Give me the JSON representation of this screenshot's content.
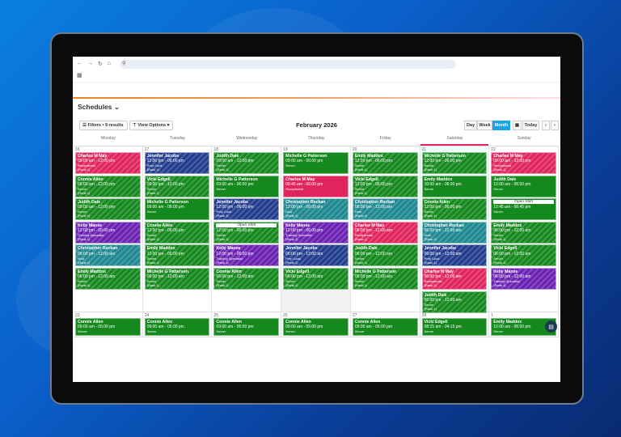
{
  "browser": {
    "icons": [
      "back-icon",
      "forward-icon",
      "reload-icon",
      "home-icon",
      "site-info-icon",
      "apps-icon"
    ]
  },
  "header": {
    "title": "Schedules",
    "title_chevron": "⌄"
  },
  "toolbar": {
    "filters_label": "Filters • 9 results",
    "view_options_label": "View Options",
    "month_title": "February 2026",
    "views": [
      "Day",
      "Week",
      "Month"
    ],
    "active_view": "Month",
    "today_label": "Today",
    "prev": "‹",
    "next": "›"
  },
  "weekdays": [
    "Monday",
    "Tuesday",
    "Wednesday",
    "Thursday",
    "Friday",
    "Saturday",
    "Sunday"
  ],
  "colors": {
    "Receptionist": "#e0245e",
    "Server": "#15891d",
    "Prep Cook": "#233d8e",
    "Training Specialist": "#6b22b3",
    "Host": "#1f8890",
    "accent": "#1aa3e8",
    "today_marker": "#e0245e"
  },
  "weeks": [
    {
      "days": [
        {
          "date": "16",
          "shifts": [
            {
              "name": "Charles M May",
              "time": "09:00 am - 12:00 pm",
              "role": "Receptionist",
              "rank": "(Rank 1)",
              "striped": true
            },
            {
              "name": "Connie Allen",
              "time": "09:00 am - 12:00 pm",
              "role": "Server",
              "rank": "(Rank 1)",
              "striped": true
            },
            {
              "name": "Judith Dale",
              "time": "09:00 am - 12:00 pm",
              "role": "Server",
              "rank": "(Rank 1)",
              "striped": true
            },
            {
              "name": "Kelly Manse",
              "time": "12:00 pm - 05:00 pm",
              "role": "Training Specialist",
              "rank": "(Rank 1)",
              "striped": true
            },
            {
              "name": "Christopher Reckan",
              "time": "06:00 pm - 12:00 am",
              "role": "Host",
              "rank": "(Rank 1)",
              "striped": true
            },
            {
              "name": "Emily Maddox",
              "time": "06:00 pm - 12:00 am",
              "role": "Server",
              "rank": "(Rank 1)",
              "striped": true
            }
          ]
        },
        {
          "date": "17",
          "shifts": [
            {
              "name": "Jennifer Jacobs",
              "time": "12:00 pm - 06:00 pm",
              "role": "Prep Cook",
              "rank": "(Rank 1)",
              "striped": true
            },
            {
              "name": "Vicki Edgell",
              "time": "09:00 am - 12:00 pm",
              "role": "Server",
              "rank": "(Rank 1)",
              "striped": true
            },
            {
              "name": "Michelle G Patterson",
              "time": "09:00 am - 06:00 pm",
              "role": "Server",
              "striped": false
            },
            {
              "name": "Connie Allen",
              "time": "12:00 pm - 06:00 pm",
              "role": "Server",
              "rank": "(Rank 1)",
              "striped": true
            },
            {
              "name": "Emily Maddox",
              "time": "12:00 pm - 06:00 pm",
              "role": "Server",
              "rank": "(Rank 1)",
              "striped": true
            },
            {
              "name": "Michelle G Patterson",
              "time": "06:00 pm - 12:00 am",
              "role": "Server",
              "rank": "(Rank 1)",
              "striped": true
            }
          ]
        },
        {
          "date": "18",
          "shifts": [
            {
              "name": "Judith Dale",
              "time": "09:00 am - 12:00 pm",
              "role": "Server",
              "rank": "(Rank 1)",
              "striped": true
            },
            {
              "name": "Michelle G Patterson",
              "time": "09:00 am - 06:00 pm",
              "role": "Server",
              "striped": false
            },
            {
              "name": "Jennifer Jacobs",
              "time": "12:00 pm - 06:00 pm",
              "role": "Prep Cook",
              "rank": "(Rank 1)",
              "striped": true
            },
            {
              "open": "Open Shift",
              "time": "12:00 pm - 06:00 pm",
              "role": "Server",
              "rank": "(Rank 1)",
              "striped": true
            },
            {
              "name": "Kelly Manse",
              "time": "12:00 pm - 06:00 pm",
              "role": "Training Specialist",
              "rank": "(Rank 1)",
              "striped": true
            },
            {
              "name": "Connie Allen",
              "time": "06:00 pm - 12:00 am",
              "role": "Server",
              "rank": "(Rank 1)",
              "striped": true
            }
          ]
        },
        {
          "date": "19",
          "shifts": [
            {
              "name": "Michelle G Patterson",
              "time": "09:00 am - 06:00 pm",
              "role": "Server",
              "striped": false
            },
            {
              "name": "Charles M May",
              "time": "09:45 am - 06:00 pm",
              "role": "Receptionist",
              "striped": false
            },
            {
              "name": "Christopher Reckan",
              "time": "12:00 pm - 06:00 pm",
              "role": "Host",
              "rank": "(Rank 1)",
              "striped": true
            },
            {
              "name": "Kelly Manse",
              "time": "12:00 pm - 06:00 pm",
              "role": "Training Specialist",
              "rank": "(Rank 1)",
              "striped": true
            },
            {
              "name": "Jennifer Jacobs",
              "time": "06:00 pm - 12:00 am",
              "role": "Prep Cook",
              "rank": "(Rank 1)",
              "striped": true
            },
            {
              "name": "Vicki Edgell",
              "time": "06:00 pm - 12:00 am",
              "role": "Server",
              "rank": "(Rank 1)",
              "striped": true
            }
          ]
        },
        {
          "date": "20",
          "shifts": [
            {
              "name": "Emily Maddox",
              "time": "12:00 pm - 06:00 pm",
              "role": "Server",
              "rank": "(Rank 1)",
              "striped": true
            },
            {
              "name": "Vicki Edgell",
              "time": "12:00 pm - 06:00 pm",
              "role": "Server",
              "rank": "(Rank 1)",
              "striped": true
            },
            {
              "name": "Christopher Reckan",
              "time": "06:00 pm - 12:00 am",
              "role": "Host",
              "rank": "(Rank 1)",
              "striped": true
            },
            {
              "name": "Charles M May",
              "time": "06:00 pm - 12:00 am",
              "role": "Receptionist",
              "rank": "(Rank 1)",
              "striped": true
            },
            {
              "name": "Judith Dale",
              "time": "06:00 pm - 12:00 am",
              "role": "Server",
              "rank": "(Rank 1)",
              "striped": true
            },
            {
              "name": "Michelle G Patterson",
              "time": "06:00 pm - 12:00 am",
              "role": "Server",
              "rank": "(Rank 1)",
              "striped": true
            }
          ]
        },
        {
          "date": "21",
          "shifts": [
            {
              "name": "Michelle G Patterson",
              "time": "12:00 pm - 06:00 pm",
              "role": "Server",
              "rank": "(Rank 1)",
              "striped": true
            },
            {
              "name": "Emily Maddox",
              "time": "10:00 am - 06:00 pm",
              "role": "Server",
              "striped": false
            },
            {
              "name": "Connie Allen",
              "time": "12:00 pm - 06:00 pm",
              "role": "Server",
              "rank": "(Rank 1)",
              "striped": true
            },
            {
              "name": "Christopher Reckan",
              "time": "06:00 pm - 12:00 am",
              "role": "Host",
              "rank": "(Rank 1)",
              "striped": true
            },
            {
              "name": "Jennifer Jacobs",
              "time": "06:00 pm - 12:00 am",
              "role": "Prep Cook",
              "rank": "(Rank 1)",
              "striped": true
            },
            {
              "name": "Charles M May",
              "time": "06:00 pm - 12:00 am",
              "role": "Receptionist",
              "rank": "(Rank 1)",
              "striped": true
            },
            {
              "name": "Judith Dale",
              "time": "06:00 pm - 12:00 am",
              "role": "Server",
              "rank": "(Rank 1)",
              "striped": true
            }
          ]
        },
        {
          "date": "22",
          "shifts": [
            {
              "name": "Charles M May",
              "time": "09:00 am - 12:00 pm",
              "role": "Receptionist",
              "rank": "(Rank 1)",
              "striped": true
            },
            {
              "name": "Judith Dale",
              "time": "10:00 am - 06:00 pm",
              "role": "Server",
              "striped": false
            },
            {
              "open": "Open Shift",
              "time": "10:45 am - 06:45 pm",
              "role": "Server",
              "striped": false
            },
            {
              "name": "Emily Maddox",
              "time": "06:00 pm - 12:00 am",
              "role": "Server",
              "rank": "(Rank 1)",
              "striped": true
            },
            {
              "name": "Vicki Edgell",
              "time": "06:00 pm - 12:00 am",
              "role": "Server",
              "rank": "(Rank 1)",
              "striped": true
            },
            {
              "name": "Kelly Manse",
              "time": "06:00 pm - 12:00 am",
              "role": "Training Specialist",
              "rank": "(Rank 1)",
              "striped": true
            }
          ]
        }
      ]
    },
    {
      "days": [
        {
          "date": "23",
          "shifts": [
            {
              "name": "Connie Allen",
              "time": "09:00 am - 05:00 pm",
              "role": "Server",
              "striped": false
            }
          ]
        },
        {
          "date": "24",
          "shifts": [
            {
              "name": "Connie Allen",
              "time": "09:00 am - 05:00 pm",
              "role": "Server",
              "striped": false
            }
          ]
        },
        {
          "date": "25",
          "shifts": [
            {
              "name": "Connie Allen",
              "time": "09:00 am - 05:00 pm",
              "role": "Server",
              "striped": false
            }
          ]
        },
        {
          "date": "26",
          "shifts": [
            {
              "name": "Connie Allen",
              "time": "09:00 am - 05:00 pm",
              "role": "Server",
              "striped": false
            }
          ]
        },
        {
          "date": "27",
          "shifts": [
            {
              "name": "Connie Allen",
              "time": "09:00 am - 05:00 pm",
              "role": "Server",
              "striped": false
            }
          ]
        },
        {
          "date": "28",
          "shifts": [
            {
              "name": "Vicki Edgell",
              "time": "08:15 am - 04:15 pm",
              "role": "Server",
              "striped": false
            }
          ]
        },
        {
          "date": "1",
          "shifts": [
            {
              "name": "Emily Maddox",
              "time": "10:00 am - 06:00 pm",
              "role": "Server",
              "striped": false
            }
          ]
        }
      ]
    }
  ]
}
